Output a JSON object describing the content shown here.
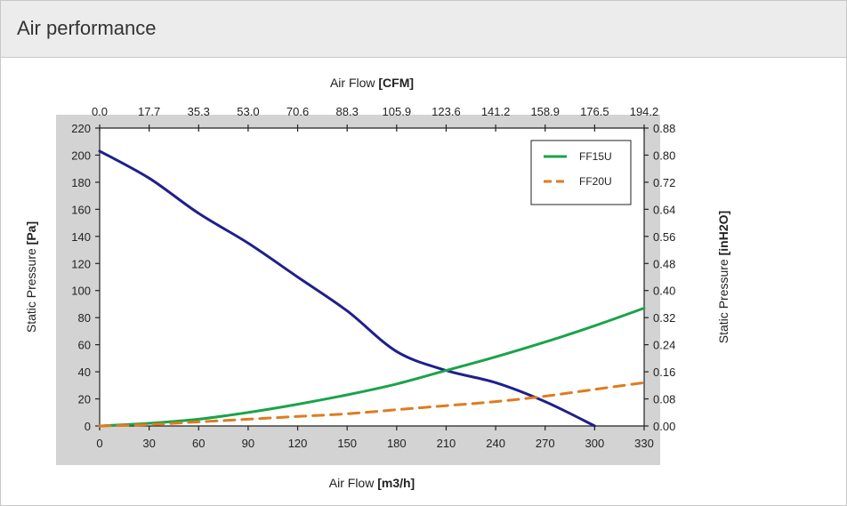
{
  "panel": {
    "title": "Air performance"
  },
  "chart_data": {
    "type": "line",
    "x": [
      0,
      30,
      60,
      90,
      120,
      150,
      180,
      210,
      240,
      270,
      300,
      330
    ],
    "xlim": [
      0,
      330
    ],
    "ylim": [
      0,
      220
    ],
    "xlabel": {
      "prefix": "Air Flow ",
      "unit": "[m3/h]"
    },
    "ylabel": {
      "prefix": "Static Pressure ",
      "unit": "[Pa]"
    },
    "x2label": {
      "prefix": "Air Flow ",
      "unit": "[CFM]"
    },
    "y2label": {
      "prefix": "Static Pressure ",
      "unit": "[inH2O]"
    },
    "x_ticks": [
      "0",
      "30",
      "60",
      "90",
      "120",
      "150",
      "180",
      "210",
      "240",
      "270",
      "300",
      "330"
    ],
    "y_ticks": [
      "0",
      "20",
      "40",
      "60",
      "80",
      "100",
      "120",
      "140",
      "160",
      "180",
      "200",
      "220"
    ],
    "x2_ticks": [
      "0.0",
      "17.7",
      "35.3",
      "53.0",
      "70.6",
      "88.3",
      "105.9",
      "123.6",
      "141.2",
      "158.9",
      "176.5",
      "194.2"
    ],
    "y2_ticks": [
      "0.00",
      "0.08",
      "0.16",
      "0.24",
      "0.32",
      "0.40",
      "0.48",
      "0.56",
      "0.64",
      "0.72",
      "0.80",
      "0.88"
    ],
    "legend_position": "top-right",
    "grid": false,
    "series": [
      {
        "values": [
          203,
          183,
          157,
          135,
          110,
          85,
          55,
          41,
          32,
          18,
          0,
          null
        ],
        "color": "#1f1f8c",
        "style": "solid"
      },
      {
        "name": "FF15U",
        "values": [
          0,
          2,
          5,
          10,
          16,
          23,
          31,
          41,
          51,
          62,
          74,
          87
        ],
        "color": "#1aa34a",
        "style": "solid"
      },
      {
        "name": "FF20U",
        "values": [
          0,
          1,
          3,
          5,
          7,
          9,
          12,
          15,
          18,
          22,
          27,
          32
        ],
        "color": "#e07b1f",
        "style": "dashed"
      }
    ]
  }
}
